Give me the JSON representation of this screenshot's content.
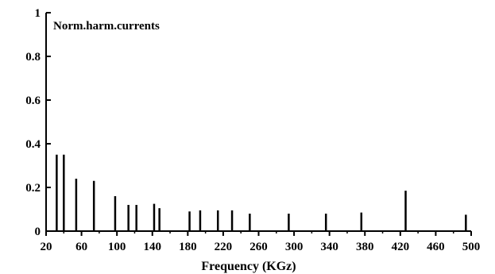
{
  "chart_data": {
    "type": "bar",
    "title": "Norm.harm.currents",
    "xlabel": "Frequency (KGz)",
    "ylabel": "",
    "xlim": [
      20,
      500
    ],
    "ylim": [
      0,
      1
    ],
    "grid": false,
    "x_ticks": [
      "20",
      "60",
      "100",
      "140",
      "180",
      "220",
      "260",
      "300",
      "340",
      "380",
      "420",
      "460",
      "500"
    ],
    "y_ticks": [
      "0",
      "0.2",
      "0.4",
      "0.6",
      "0.8",
      "1"
    ],
    "x": [
      32,
      40,
      54,
      74,
      98,
      113,
      122,
      142,
      148,
      182,
      194,
      214,
      230,
      250,
      294,
      336,
      376,
      426,
      494
    ],
    "values": [
      0.35,
      0.35,
      0.24,
      0.23,
      0.16,
      0.12,
      0.12,
      0.125,
      0.105,
      0.09,
      0.095,
      0.095,
      0.095,
      0.08,
      0.08,
      0.08,
      0.085,
      0.185,
      0.075
    ],
    "color": "#000000"
  }
}
